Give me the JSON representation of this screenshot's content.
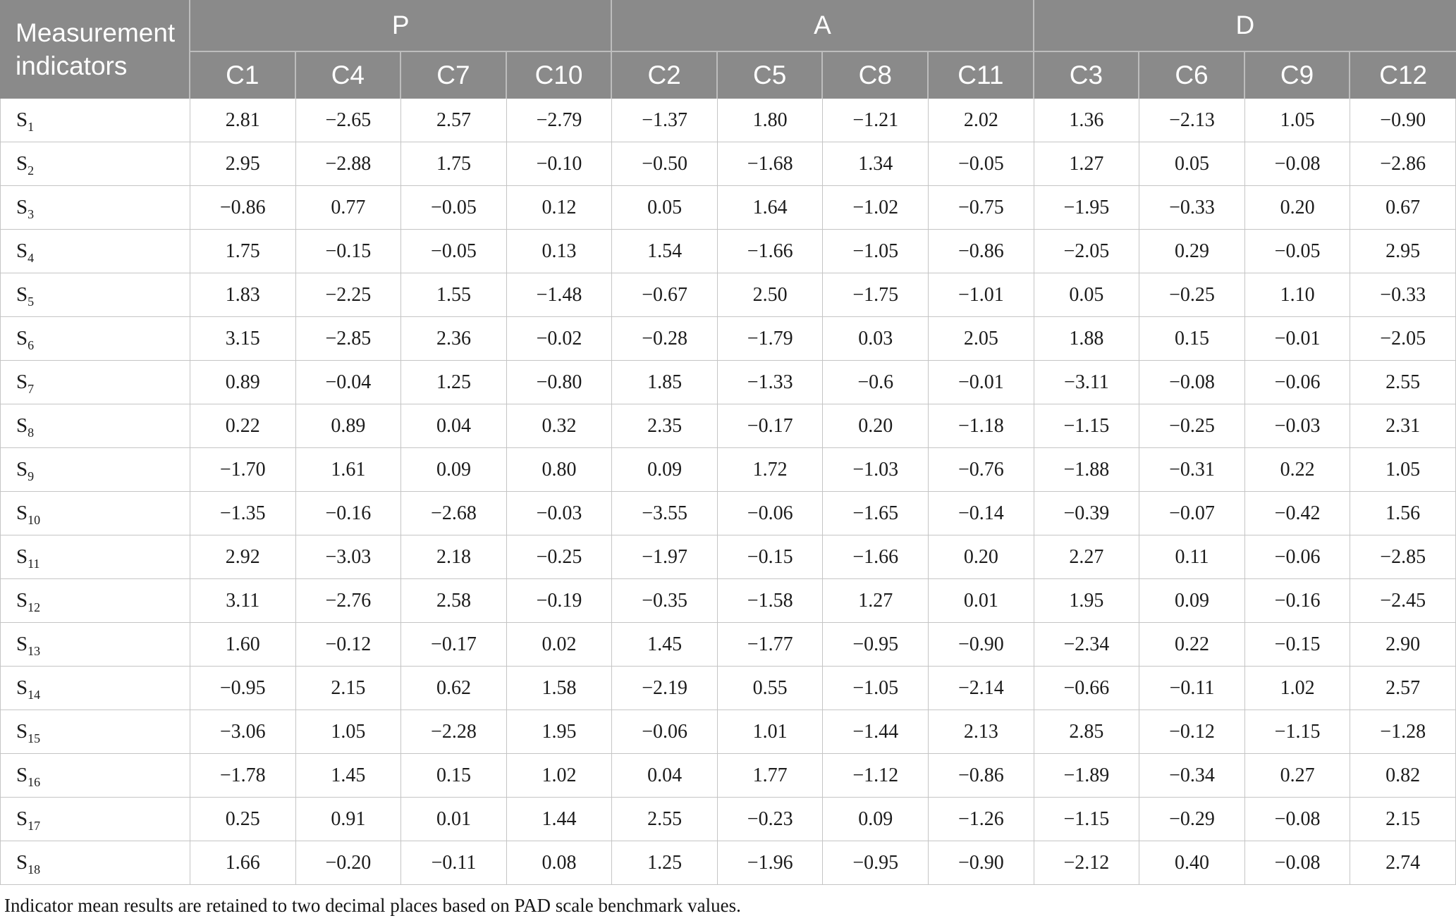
{
  "table": {
    "corner_label": "Measurement indicators",
    "groups": [
      {
        "label": "P",
        "columns": [
          "C1",
          "C4",
          "C7",
          "C10"
        ]
      },
      {
        "label": "A",
        "columns": [
          "C2",
          "C5",
          "C8",
          "C11"
        ]
      },
      {
        "label": "D",
        "columns": [
          "C3",
          "C6",
          "C9",
          "C12"
        ]
      }
    ],
    "row_label_base": "S",
    "rows": [
      {
        "sub": "1",
        "values": [
          "2.81",
          "−2.65",
          "2.57",
          "−2.79",
          "−1.37",
          "1.80",
          "−1.21",
          "2.02",
          "1.36",
          "−2.13",
          "1.05",
          "−0.90"
        ]
      },
      {
        "sub": "2",
        "values": [
          "2.95",
          "−2.88",
          "1.75",
          "−0.10",
          "−0.50",
          "−1.68",
          "1.34",
          "−0.05",
          "1.27",
          "0.05",
          "−0.08",
          "−2.86"
        ]
      },
      {
        "sub": "3",
        "values": [
          "−0.86",
          "0.77",
          "−0.05",
          "0.12",
          "0.05",
          "1.64",
          "−1.02",
          "−0.75",
          "−1.95",
          "−0.33",
          "0.20",
          "0.67"
        ]
      },
      {
        "sub": "4",
        "values": [
          "1.75",
          "−0.15",
          "−0.05",
          "0.13",
          "1.54",
          "−1.66",
          "−1.05",
          "−0.86",
          "−2.05",
          "0.29",
          "−0.05",
          "2.95"
        ]
      },
      {
        "sub": "5",
        "values": [
          "1.83",
          "−2.25",
          "1.55",
          "−1.48",
          "−0.67",
          "2.50",
          "−1.75",
          "−1.01",
          "0.05",
          "−0.25",
          "1.10",
          "−0.33"
        ]
      },
      {
        "sub": "6",
        "values": [
          "3.15",
          "−2.85",
          "2.36",
          "−0.02",
          "−0.28",
          "−1.79",
          "0.03",
          "2.05",
          "1.88",
          "0.15",
          "−0.01",
          "−2.05"
        ]
      },
      {
        "sub": "7",
        "values": [
          "0.89",
          "−0.04",
          "1.25",
          "−0.80",
          "1.85",
          "−1.33",
          "−0.6",
          "−0.01",
          "−3.11",
          "−0.08",
          "−0.06",
          "2.55"
        ]
      },
      {
        "sub": "8",
        "values": [
          "0.22",
          "0.89",
          "0.04",
          "0.32",
          "2.35",
          "−0.17",
          "0.20",
          "−1.18",
          "−1.15",
          "−0.25",
          "−0.03",
          "2.31"
        ]
      },
      {
        "sub": "9",
        "values": [
          "−1.70",
          "1.61",
          "0.09",
          "0.80",
          "0.09",
          "1.72",
          "−1.03",
          "−0.76",
          "−1.88",
          "−0.31",
          "0.22",
          "1.05"
        ]
      },
      {
        "sub": "10",
        "values": [
          "−1.35",
          "−0.16",
          "−2.68",
          "−0.03",
          "−3.55",
          "−0.06",
          "−1.65",
          "−0.14",
          "−0.39",
          "−0.07",
          "−0.42",
          "1.56"
        ]
      },
      {
        "sub": "11",
        "values": [
          "2.92",
          "−3.03",
          "2.18",
          "−0.25",
          "−1.97",
          "−0.15",
          "−1.66",
          "0.20",
          "2.27",
          "0.11",
          "−0.06",
          "−2.85"
        ]
      },
      {
        "sub": "12",
        "values": [
          "3.11",
          "−2.76",
          "2.58",
          "−0.19",
          "−0.35",
          "−1.58",
          "1.27",
          "0.01",
          "1.95",
          "0.09",
          "−0.16",
          "−2.45"
        ]
      },
      {
        "sub": "13",
        "values": [
          "1.60",
          "−0.12",
          "−0.17",
          "0.02",
          "1.45",
          "−1.77",
          "−0.95",
          "−0.90",
          "−2.34",
          "0.22",
          "−0.15",
          "2.90"
        ]
      },
      {
        "sub": "14",
        "values": [
          "−0.95",
          "2.15",
          "0.62",
          "1.58",
          "−2.19",
          "0.55",
          "−1.05",
          "−2.14",
          "−0.66",
          "−0.11",
          "1.02",
          "2.57"
        ]
      },
      {
        "sub": "15",
        "values": [
          "−3.06",
          "1.05",
          "−2.28",
          "1.95",
          "−0.06",
          "1.01",
          "−1.44",
          "2.13",
          "2.85",
          "−0.12",
          "−1.15",
          "−1.28"
        ]
      },
      {
        "sub": "16",
        "values": [
          "−1.78",
          "1.45",
          "0.15",
          "1.02",
          "0.04",
          "1.77",
          "−1.12",
          "−0.86",
          "−1.89",
          "−0.34",
          "0.27",
          "0.82"
        ]
      },
      {
        "sub": "17",
        "values": [
          "0.25",
          "0.91",
          "0.01",
          "1.44",
          "2.55",
          "−0.23",
          "0.09",
          "−1.26",
          "−1.15",
          "−0.29",
          "−0.08",
          "2.15"
        ]
      },
      {
        "sub": "18",
        "values": [
          "1.66",
          "−0.20",
          "−0.11",
          "0.08",
          "1.25",
          "−1.96",
          "−0.95",
          "−0.90",
          "−2.12",
          "0.40",
          "−0.08",
          "2.74"
        ]
      }
    ]
  },
  "footnote": "Indicator mean results are retained to two decimal places based on PAD scale benchmark values.",
  "colors": {
    "header_bg": "#8a8a8a",
    "header_text": "#ffffff",
    "grid_line": "#c5c5c5",
    "header_divider": "#bdbdbd",
    "body_text": "#1c1c1c"
  }
}
